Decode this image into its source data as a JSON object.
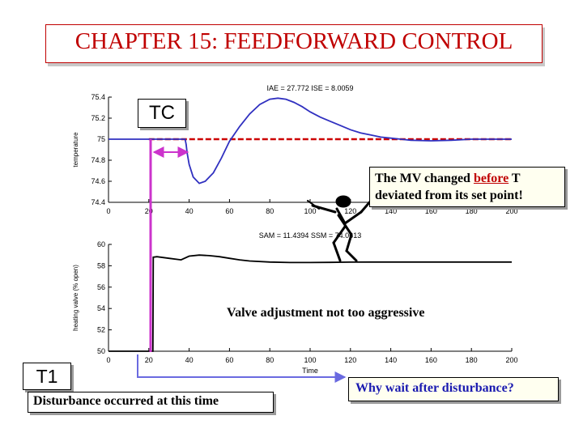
{
  "title": "CHAPTER 15: FEEDFORWARD CONTROL",
  "chart_data": [
    {
      "type": "line",
      "title": "IAE = 27.772 ISE = 8.0059",
      "xlabel": "",
      "ylabel": "temperature",
      "xlim": [
        0,
        200
      ],
      "ylim": [
        74.4,
        75.4
      ],
      "xticks": [
        "0",
        "20",
        "40",
        "60",
        "80",
        "100",
        "120",
        "140",
        "160",
        "180",
        "200"
      ],
      "yticks": [
        "74.4",
        "74.6",
        "74.8",
        "75",
        "75.2",
        "75.4"
      ],
      "series": [
        {
          "x": [
            0,
            20,
            38,
            38.5,
            39,
            40,
            42,
            45,
            48,
            52,
            56,
            60,
            65,
            70,
            75,
            80,
            84,
            88,
            92,
            96,
            100,
            105,
            110,
            115,
            120,
            125,
            130,
            135,
            140,
            145,
            150,
            160,
            170,
            180,
            190,
            200
          ],
          "y": [
            75,
            75,
            75,
            74.95,
            74.87,
            74.76,
            74.64,
            74.58,
            74.6,
            74.68,
            74.82,
            74.98,
            75.12,
            75.24,
            75.33,
            75.38,
            75.39,
            75.38,
            75.35,
            75.31,
            75.26,
            75.21,
            75.17,
            75.13,
            75.09,
            75.06,
            75.04,
            75.02,
            75.01,
            75.0,
            74.99,
            74.985,
            74.99,
            75.0,
            75.0,
            75.0
          ],
          "color": "#3030c0"
        }
      ],
      "setpoint": {
        "y": 75,
        "x_from": 20,
        "x_to": 200,
        "color": "#cc0000"
      }
    },
    {
      "type": "line",
      "title": "SAM = 11.4394 SSM = 74.0613",
      "xlabel": "Time",
      "ylabel": "heating valve (% open)",
      "xlim": [
        0,
        200
      ],
      "ylim": [
        50,
        60
      ],
      "xticks": [
        "0",
        "20",
        "40",
        "60",
        "80",
        "100",
        "120",
        "140",
        "160",
        "180",
        "200"
      ],
      "yticks": [
        "50",
        "52",
        "54",
        "56",
        "58",
        "60"
      ],
      "series": [
        {
          "x": [
            0,
            22,
            22.2,
            24,
            30,
            36,
            40,
            45,
            50,
            55,
            60,
            65,
            70,
            80,
            90,
            100,
            110,
            120,
            130,
            140,
            150,
            160,
            170,
            180,
            190,
            200
          ],
          "y": [
            50,
            50,
            58.8,
            58.85,
            58.7,
            58.55,
            58.9,
            59.0,
            58.95,
            58.85,
            58.7,
            58.55,
            58.45,
            58.35,
            58.3,
            58.3,
            58.32,
            58.34,
            58.35,
            58.35,
            58.35,
            58.35,
            58.35,
            58.35,
            58.35,
            58.35
          ],
          "color": "#000000"
        }
      ]
    }
  ],
  "annotations": {
    "tc_label": "TC",
    "t1_label": "T1",
    "mv_note_line1": "The MV changed",
    "mv_note_em": "before",
    "mv_note_line1_end": "T",
    "mv_note_line2": "deviated from its set point!",
    "valve_note": "Valve adjustment not too aggressive",
    "disturbance_note": "Disturbance occurred at this time",
    "why_wait_note": "Why wait after disturbance?"
  },
  "colors": {
    "title": "#c00000",
    "marker": "#cc33cc",
    "arrow": "#6a6ae0"
  },
  "icons": [
    "stick-figure-icon"
  ]
}
